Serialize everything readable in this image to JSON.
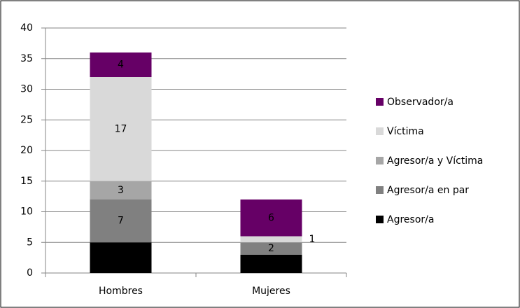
{
  "chart_data": {
    "type": "stacked_bar",
    "categories": [
      "Hombres",
      "Mujeres"
    ],
    "series": [
      {
        "name": "Agresor/a",
        "color": "#000000",
        "values": [
          5,
          3
        ]
      },
      {
        "name": "Agresor/a en par",
        "color": "#808080",
        "values": [
          7,
          2
        ]
      },
      {
        "name": "Agresor/a y Víctima",
        "color": "#a6a6a6",
        "values": [
          3,
          0
        ]
      },
      {
        "name": "Víctima",
        "color": "#d9d9d9",
        "values": [
          17,
          1
        ]
      },
      {
        "name": "Observador/a",
        "color": "#660066",
        "values": [
          4,
          6
        ]
      }
    ],
    "ylim": [
      0,
      40
    ],
    "yticks": [
      0,
      5,
      10,
      15,
      20,
      25,
      30,
      35,
      40
    ],
    "grid": true,
    "legend": "right"
  }
}
